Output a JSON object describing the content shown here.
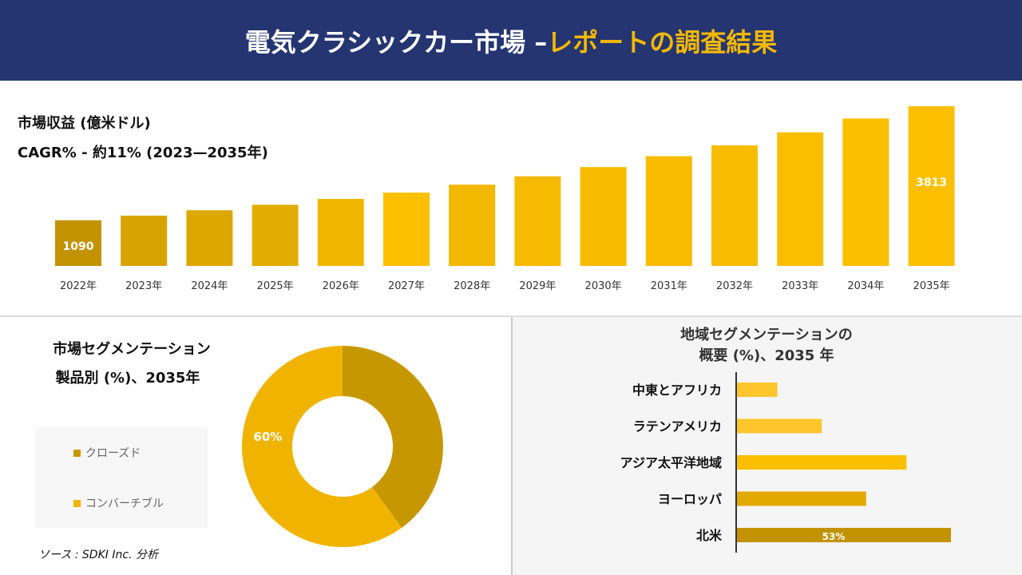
{
  "header": {
    "title_main": "電気クラシックカー市場 –",
    "title_accent": "レポートの調査結果"
  },
  "revenue": {
    "title": "市場収益 (億米ドル)",
    "cagr": "CAGR% - 約11% (2023—2035年)"
  },
  "source": "ソース : SDKI Inc. 分析",
  "colors": {
    "header": "#243571",
    "accent": "#f5b800",
    "dark_gold": "#c39200",
    "gold": "#f0b400"
  },
  "chart_data": [
    {
      "type": "bar",
      "categories": [
        "2022年",
        "2023年",
        "2024年",
        "2025年",
        "2026年",
        "2027年",
        "2028年",
        "2029年",
        "2030年",
        "2031年",
        "2032年",
        "2033年",
        "2034年",
        "2035年"
      ],
      "values": [
        1090,
        1200,
        1330,
        1460,
        1600,
        1750,
        1940,
        2140,
        2360,
        2620,
        2880,
        3190,
        3520,
        3813
      ],
      "data_labels": {
        "0": "1090",
        "13": "3813"
      },
      "grid": false
    },
    {
      "type": "pie",
      "title": "市場セグメンテーション\n製品別 (%)、2035年",
      "title_line1": "市場セグメンテーション",
      "title_line2": "製品別 (%)、2035年",
      "slices": [
        {
          "name": "クローズド",
          "value": 40,
          "color": "#c79700"
        },
        {
          "name": "コンバーチブル",
          "value": 60,
          "color": "#f0b400",
          "label": "60%"
        }
      ],
      "legend": "left"
    },
    {
      "type": "bar",
      "orientation": "horizontal",
      "title_line1": "地域セグメンテーションの",
      "title_line2": "概要 (%)、2035 年",
      "categories": [
        "中東とアフリカ",
        "ラテンアメリカ",
        "アジア太平洋地域",
        "ヨーロッパ",
        "北米"
      ],
      "values": [
        10,
        21,
        42,
        32,
        53
      ],
      "data_labels": {
        "4": "53%"
      },
      "colors": [
        "#fcc62c",
        "#fcc62c",
        "#fcbf00",
        "#e2aa00",
        "#c39200"
      ]
    }
  ]
}
